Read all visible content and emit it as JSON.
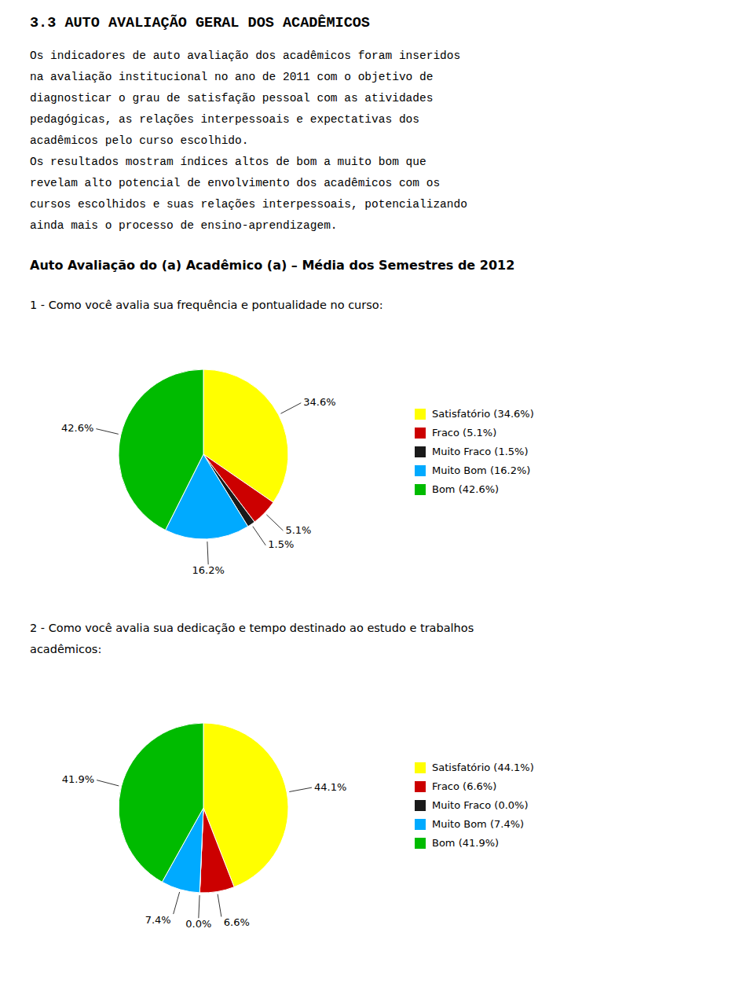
{
  "title": "3.3 AUTO AVALIAÇÃO GERAL DOS ACADÊMICOS",
  "paragraphs": [
    [
      "Os indicadores de auto avaliação dos acadêmicos foram inseridos",
      "na avaliação institucional no ano de 2011 com o objetivo de",
      "diagnosticar o grau de satisfação pessoal com as atividades",
      "pedagógicas, as relações interpessoais e expectativas dos",
      "acadêmicos pelo curso escolhido."
    ],
    [
      "Os resultados mostram índices altos de bom a muito bom que",
      "revelam alto potencial de envolvimento dos acadêmicos com os",
      "cursos escolhidos e suas relações interpessoais, potencializando",
      "ainda mais o processo de ensino-aprendizagem."
    ]
  ],
  "subtitle": "Auto Avaliação do (a) Acadêmico (a) – Média dos Semestres de 2012",
  "chart_data": [
    {
      "type": "pie",
      "title": [
        "1 - Como você avalia sua frequência e pontualidade no curso:"
      ],
      "categories": [
        "Satisfatório (34.6%)",
        "Fraco (5.1%)",
        "Muito Fraco (1.5%)",
        "Muito Bom (16.2%)",
        "Bom (42.6%)"
      ],
      "values": [
        34.6,
        5.1,
        1.5,
        16.2,
        42.6
      ],
      "value_labels": [
        "34.6%",
        "5.1%",
        "1.5%",
        "16.2%",
        "42.6%"
      ],
      "colors": [
        "#ffff00",
        "#cc0000",
        "#1a1a1a",
        "#00aaff",
        "#00bb00"
      ],
      "data_labels": true,
      "legend": "right"
    },
    {
      "type": "pie",
      "title": [
        "2 - Como você avalia sua dedicação e tempo destinado ao estudo e trabalhos",
        "acadêmicos:"
      ],
      "categories": [
        "Satisfatório (44.1%)",
        "Fraco (6.6%)",
        "Muito Fraco (0.0%)",
        "Muito Bom (7.4%)",
        "Bom (41.9%)"
      ],
      "values": [
        44.1,
        6.6,
        0.001,
        7.4,
        41.9
      ],
      "value_labels": [
        "44.1%",
        "6.6%",
        "0.0%",
        "7.4%",
        "41.9%"
      ],
      "colors": [
        "#ffff00",
        "#cc0000",
        "#1a1a1a",
        "#00aaff",
        "#00bb00"
      ],
      "data_labels": true,
      "legend": "right"
    }
  ]
}
